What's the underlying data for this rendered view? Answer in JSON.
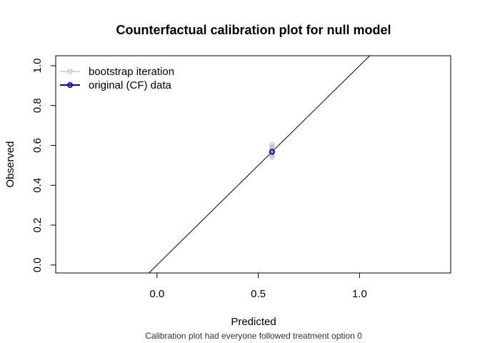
{
  "chart_data": {
    "type": "scatter",
    "title": "Counterfactual calibration plot for null model",
    "subtitle": "Calibration plot had everyone followed treatment option 0",
    "xlabel": "Predicted",
    "ylabel": "Observed",
    "xlim": [
      -0.5,
      1.45
    ],
    "ylim": [
      -0.04,
      1.05
    ],
    "x_ticks": [
      {
        "value": 0.0,
        "label": "0.0"
      },
      {
        "value": 0.5,
        "label": "0.5"
      },
      {
        "value": 1.0,
        "label": "1.0"
      }
    ],
    "y_ticks": [
      {
        "value": 0.0,
        "label": "0.0"
      },
      {
        "value": 0.2,
        "label": "0.2"
      },
      {
        "value": 0.4,
        "label": "0.4"
      },
      {
        "value": 0.6,
        "label": "0.6"
      },
      {
        "value": 0.8,
        "label": "0.8"
      },
      {
        "value": 1.0,
        "label": "1.0"
      }
    ],
    "reference_line": {
      "slope": 1,
      "intercept": 0,
      "color": "#000000"
    },
    "legend": {
      "position": "top-left",
      "entries": [
        {
          "label": "bootstrap iteration",
          "color": "#b3b3b3"
        },
        {
          "label": "original (CF) data",
          "color": "#0000cd"
        }
      ]
    },
    "series": [
      {
        "name": "bootstrap iteration",
        "color": "#b3b3b3",
        "x": [
          0.568,
          0.568,
          0.568,
          0.568,
          0.568,
          0.568,
          0.568
        ],
        "y": [
          0.54,
          0.55,
          0.56,
          0.575,
          0.585,
          0.595,
          0.605
        ]
      },
      {
        "name": "original (CF) data",
        "color": "#0000cd",
        "x": [
          0.568
        ],
        "y": [
          0.568
        ]
      }
    ],
    "grid": false
  }
}
